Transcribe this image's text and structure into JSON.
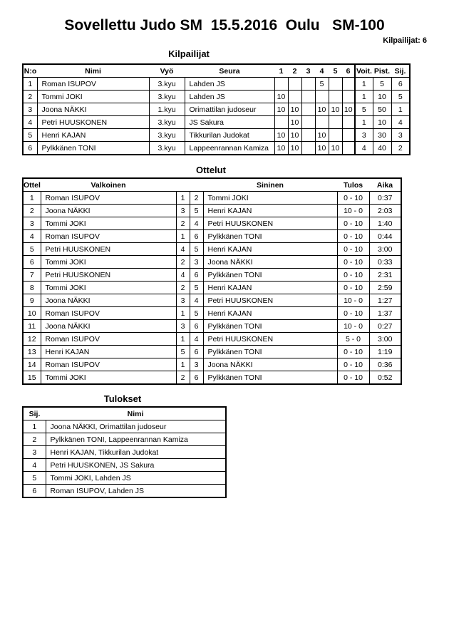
{
  "title": "Sovellettu Judo SM  15.5.2016  Oulu   SM-100",
  "competitor_count": "Kilpailijat: 6",
  "participants": {
    "heading": "Kilpailijat",
    "headers": [
      "N:o",
      "Nimi",
      "Vyö",
      "Seura",
      "1",
      "2",
      "3",
      "4",
      "5",
      "6",
      "Voit.",
      "Pist.",
      "Sij."
    ],
    "rows": [
      [
        "1",
        "Roman ISUPOV",
        "3.kyu",
        "Lahden JS",
        "",
        "",
        "",
        "5",
        "",
        "",
        "1",
        "5",
        "6"
      ],
      [
        "2",
        "Tommi JOKI",
        "3.kyu",
        "Lahden JS",
        "10",
        "",
        "",
        "",
        "",
        "",
        "1",
        "10",
        "5"
      ],
      [
        "3",
        "Joona NÄKKI",
        "1.kyu",
        "Orimattilan judoseur",
        "10",
        "10",
        "",
        "10",
        "10",
        "10",
        "5",
        "50",
        "1"
      ],
      [
        "4",
        "Petri HUUSKONEN",
        "3.kyu",
        "JS Sakura",
        "",
        "10",
        "",
        "",
        "",
        "",
        "1",
        "10",
        "4"
      ],
      [
        "5",
        "Henri KAJAN",
        "3.kyu",
        "Tikkurilan Judokat",
        "10",
        "10",
        "",
        "10",
        "",
        "",
        "3",
        "30",
        "3"
      ],
      [
        "6",
        "Pylkkänen TONI",
        "3.kyu",
        "Lappeenrannan Kamiza",
        "10",
        "10",
        "",
        "10",
        "10",
        "",
        "4",
        "40",
        "2"
      ]
    ]
  },
  "matches": {
    "heading": "Ottelut",
    "headers": [
      "Ottelu",
      "Valkoinen",
      "",
      "",
      "Sininen",
      "Tulos",
      "Aika"
    ],
    "rows": [
      [
        "1",
        "Roman ISUPOV",
        "1",
        "2",
        "Tommi JOKI",
        "0 - 10",
        "0:37"
      ],
      [
        "2",
        "Joona NÄKKI",
        "3",
        "5",
        "Henri KAJAN",
        "10 - 0",
        "2:03"
      ],
      [
        "3",
        "Tommi JOKI",
        "2",
        "4",
        "Petri HUUSKONEN",
        "0 - 10",
        "1:40"
      ],
      [
        "4",
        "Roman ISUPOV",
        "1",
        "6",
        "Pylkkänen TONI",
        "0 - 10",
        "0:44"
      ],
      [
        "5",
        "Petri HUUSKONEN",
        "4",
        "5",
        "Henri KAJAN",
        "0 - 10",
        "3:00"
      ],
      [
        "6",
        "Tommi JOKI",
        "2",
        "3",
        "Joona NÄKKI",
        "0 - 10",
        "0:33"
      ],
      [
        "7",
        "Petri HUUSKONEN",
        "4",
        "6",
        "Pylkkänen TONI",
        "0 - 10",
        "2:31"
      ],
      [
        "8",
        "Tommi JOKI",
        "2",
        "5",
        "Henri KAJAN",
        "0 - 10",
        "2:59"
      ],
      [
        "9",
        "Joona NÄKKI",
        "3",
        "4",
        "Petri HUUSKONEN",
        "10 - 0",
        "1:27"
      ],
      [
        "10",
        "Roman ISUPOV",
        "1",
        "5",
        "Henri KAJAN",
        "0 - 10",
        "1:37"
      ],
      [
        "11",
        "Joona NÄKKI",
        "3",
        "6",
        "Pylkkänen TONI",
        "10 - 0",
        "0:27"
      ],
      [
        "12",
        "Roman ISUPOV",
        "1",
        "4",
        "Petri HUUSKONEN",
        "5 - 0",
        "3:00"
      ],
      [
        "13",
        "Henri KAJAN",
        "5",
        "6",
        "Pylkkänen TONI",
        "0 - 10",
        "1:19"
      ],
      [
        "14",
        "Roman ISUPOV",
        "1",
        "3",
        "Joona NÄKKI",
        "0 - 10",
        "0:36"
      ],
      [
        "15",
        "Tommi JOKI",
        "2",
        "6",
        "Pylkkänen TONI",
        "0 - 10",
        "0:52"
      ]
    ]
  },
  "results": {
    "heading": "Tulokset",
    "headers": [
      "Sij.",
      "Nimi"
    ],
    "rows": [
      [
        "1",
        "Joona NÄKKI, Orimattilan judoseur"
      ],
      [
        "2",
        "Pylkkänen TONI, Lappeenrannan Kamiza"
      ],
      [
        "3",
        "Henri KAJAN, Tikkurilan Judokat"
      ],
      [
        "4",
        "Petri HUUSKONEN, JS Sakura"
      ],
      [
        "5",
        "Tommi JOKI, Lahden JS"
      ],
      [
        "6",
        "Roman ISUPOV, Lahden JS"
      ]
    ]
  }
}
